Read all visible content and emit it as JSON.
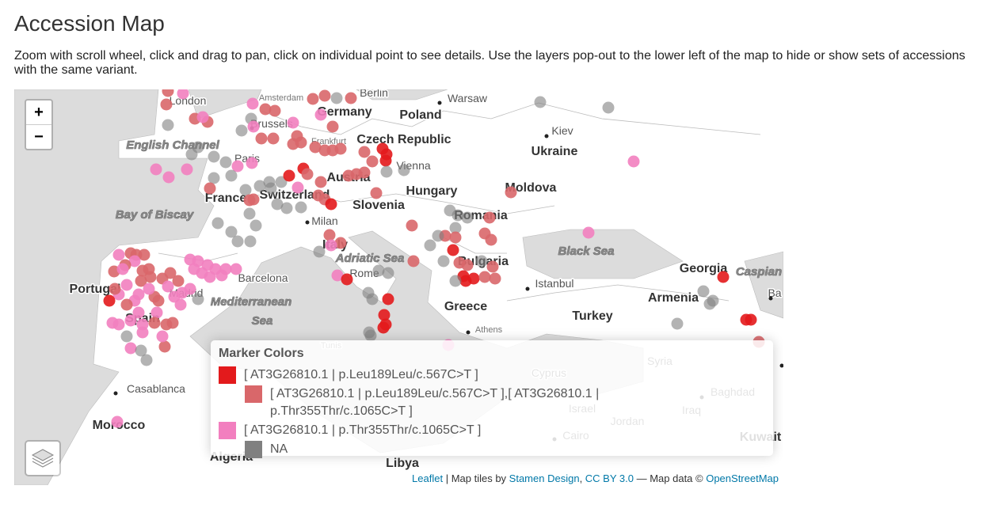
{
  "header": {
    "title": "Accession Map",
    "description": "Zoom with scroll wheel, click and drag to pan, click on individual point to see details. Use the layers pop-out to the lower left of the map to hide or show sets of accessions with the same variant."
  },
  "map": {
    "labels": [
      "London",
      "Amsterdam",
      "Berlin",
      "Warsaw",
      "Germany",
      "Poland",
      "Brussels",
      "Kiev",
      "Frankfurt",
      "Czech Republic",
      "English Channel",
      "Ukraine",
      "Paris",
      "Vienna",
      "Austria",
      "Hungary",
      "Moldova",
      "France",
      "Switzerland",
      "Slovenia",
      "Romania",
      "Bay of Biscay",
      "Milan",
      "Italy",
      "Black Sea",
      "Adriatic Sea",
      "Bulgaria",
      "Rome",
      "Barcelona",
      "Georgia",
      "Caspian",
      "Portugal",
      "Madrid",
      "Istanbul",
      "Armenia",
      "Mediterranean",
      "Sea",
      "Greece",
      "Turkey",
      "Spain",
      "Athens",
      "Syria",
      "Casablanca",
      "Baghdad",
      "Israel",
      "Iraq",
      "Jordan",
      "Morocco",
      "Cairo",
      "Kuwait",
      "Algeria",
      "Libya",
      "Cyprus",
      "Tunis",
      "Ba"
    ],
    "controls": {
      "zoom_in": "+",
      "zoom_out": "−"
    },
    "legend": {
      "title": "Marker Colors",
      "items": [
        {
          "label": "[ AT3G26810.1 | p.Leu189Leu/c.567C>T ]",
          "color": "#e31a1c"
        },
        {
          "label": "[ AT3G26810.1 | p.Leu189Leu/c.567C>T ],[ AT3G26810.1 | p.Thr355Thr/c.1065C>T ]",
          "color": "#d9676a"
        },
        {
          "label": "[ AT3G26810.1 | p.Thr355Thr/c.1065C>T ]",
          "color": "#f27fbf"
        },
        {
          "label": "NA",
          "color": "#808080"
        }
      ]
    },
    "attribution": {
      "leaflet": "Leaflet",
      "sep": " | Map tiles by ",
      "stamen": "Stamen Design",
      "comma": ", ",
      "license": "CC BY 3.0",
      "data": " — Map data © ",
      "osm": "OpenStreetMap"
    }
  }
}
